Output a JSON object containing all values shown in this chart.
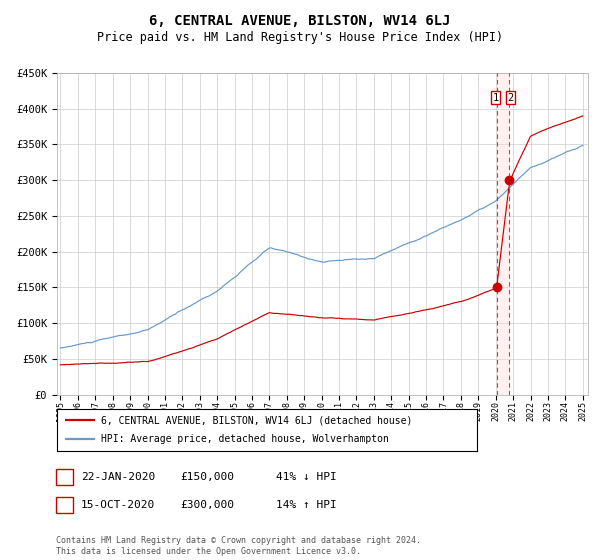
{
  "title": "6, CENTRAL AVENUE, BILSTON, WV14 6LJ",
  "subtitle": "Price paid vs. HM Land Registry's House Price Index (HPI)",
  "title_fontsize": 10,
  "subtitle_fontsize": 8.5,
  "ylim": [
    0,
    450000
  ],
  "yticks": [
    0,
    50000,
    100000,
    150000,
    200000,
    250000,
    300000,
    350000,
    400000,
    450000
  ],
  "ytick_labels": [
    "£0",
    "£50K",
    "£100K",
    "£150K",
    "£200K",
    "£250K",
    "£300K",
    "£350K",
    "£400K",
    "£450K"
  ],
  "xstart_year": 1995,
  "xend_year": 2025,
  "hpi_color": "#6699cc",
  "price_color": "#cc0000",
  "marker_color": "#cc0000",
  "vline_color": "#cc0000",
  "transaction1_date": 2020.056,
  "transaction1_price": 150000,
  "transaction2_date": 2020.789,
  "transaction2_price": 300000,
  "legend_line1": "6, CENTRAL AVENUE, BILSTON, WV14 6LJ (detached house)",
  "legend_line2": "HPI: Average price, detached house, Wolverhampton",
  "footnote": "Contains HM Land Registry data © Crown copyright and database right 2024.\nThis data is licensed under the Open Government Licence v3.0.",
  "background_color": "#ffffff",
  "grid_color": "#cccccc",
  "hpi_interp_t": [
    1995,
    2000,
    2004,
    2007,
    2010,
    2013,
    2018,
    2020,
    2022,
    2025
  ],
  "hpi_interp_v": [
    65000,
    88000,
    143000,
    202000,
    182000,
    187000,
    242000,
    267000,
    312000,
    342000
  ],
  "price_interp_t": [
    1995,
    2000,
    2004,
    2007,
    2010,
    2013,
    2018,
    2020.05,
    2020.8,
    2022,
    2025
  ],
  "price_interp_v": [
    42000,
    47000,
    80000,
    116000,
    108000,
    105000,
    131000,
    150000,
    300000,
    362000,
    392000
  ],
  "noise_scale_hpi": 300,
  "noise_scale_price": 180,
  "hpi_noise_seed": 10,
  "price_noise_seed": 30
}
